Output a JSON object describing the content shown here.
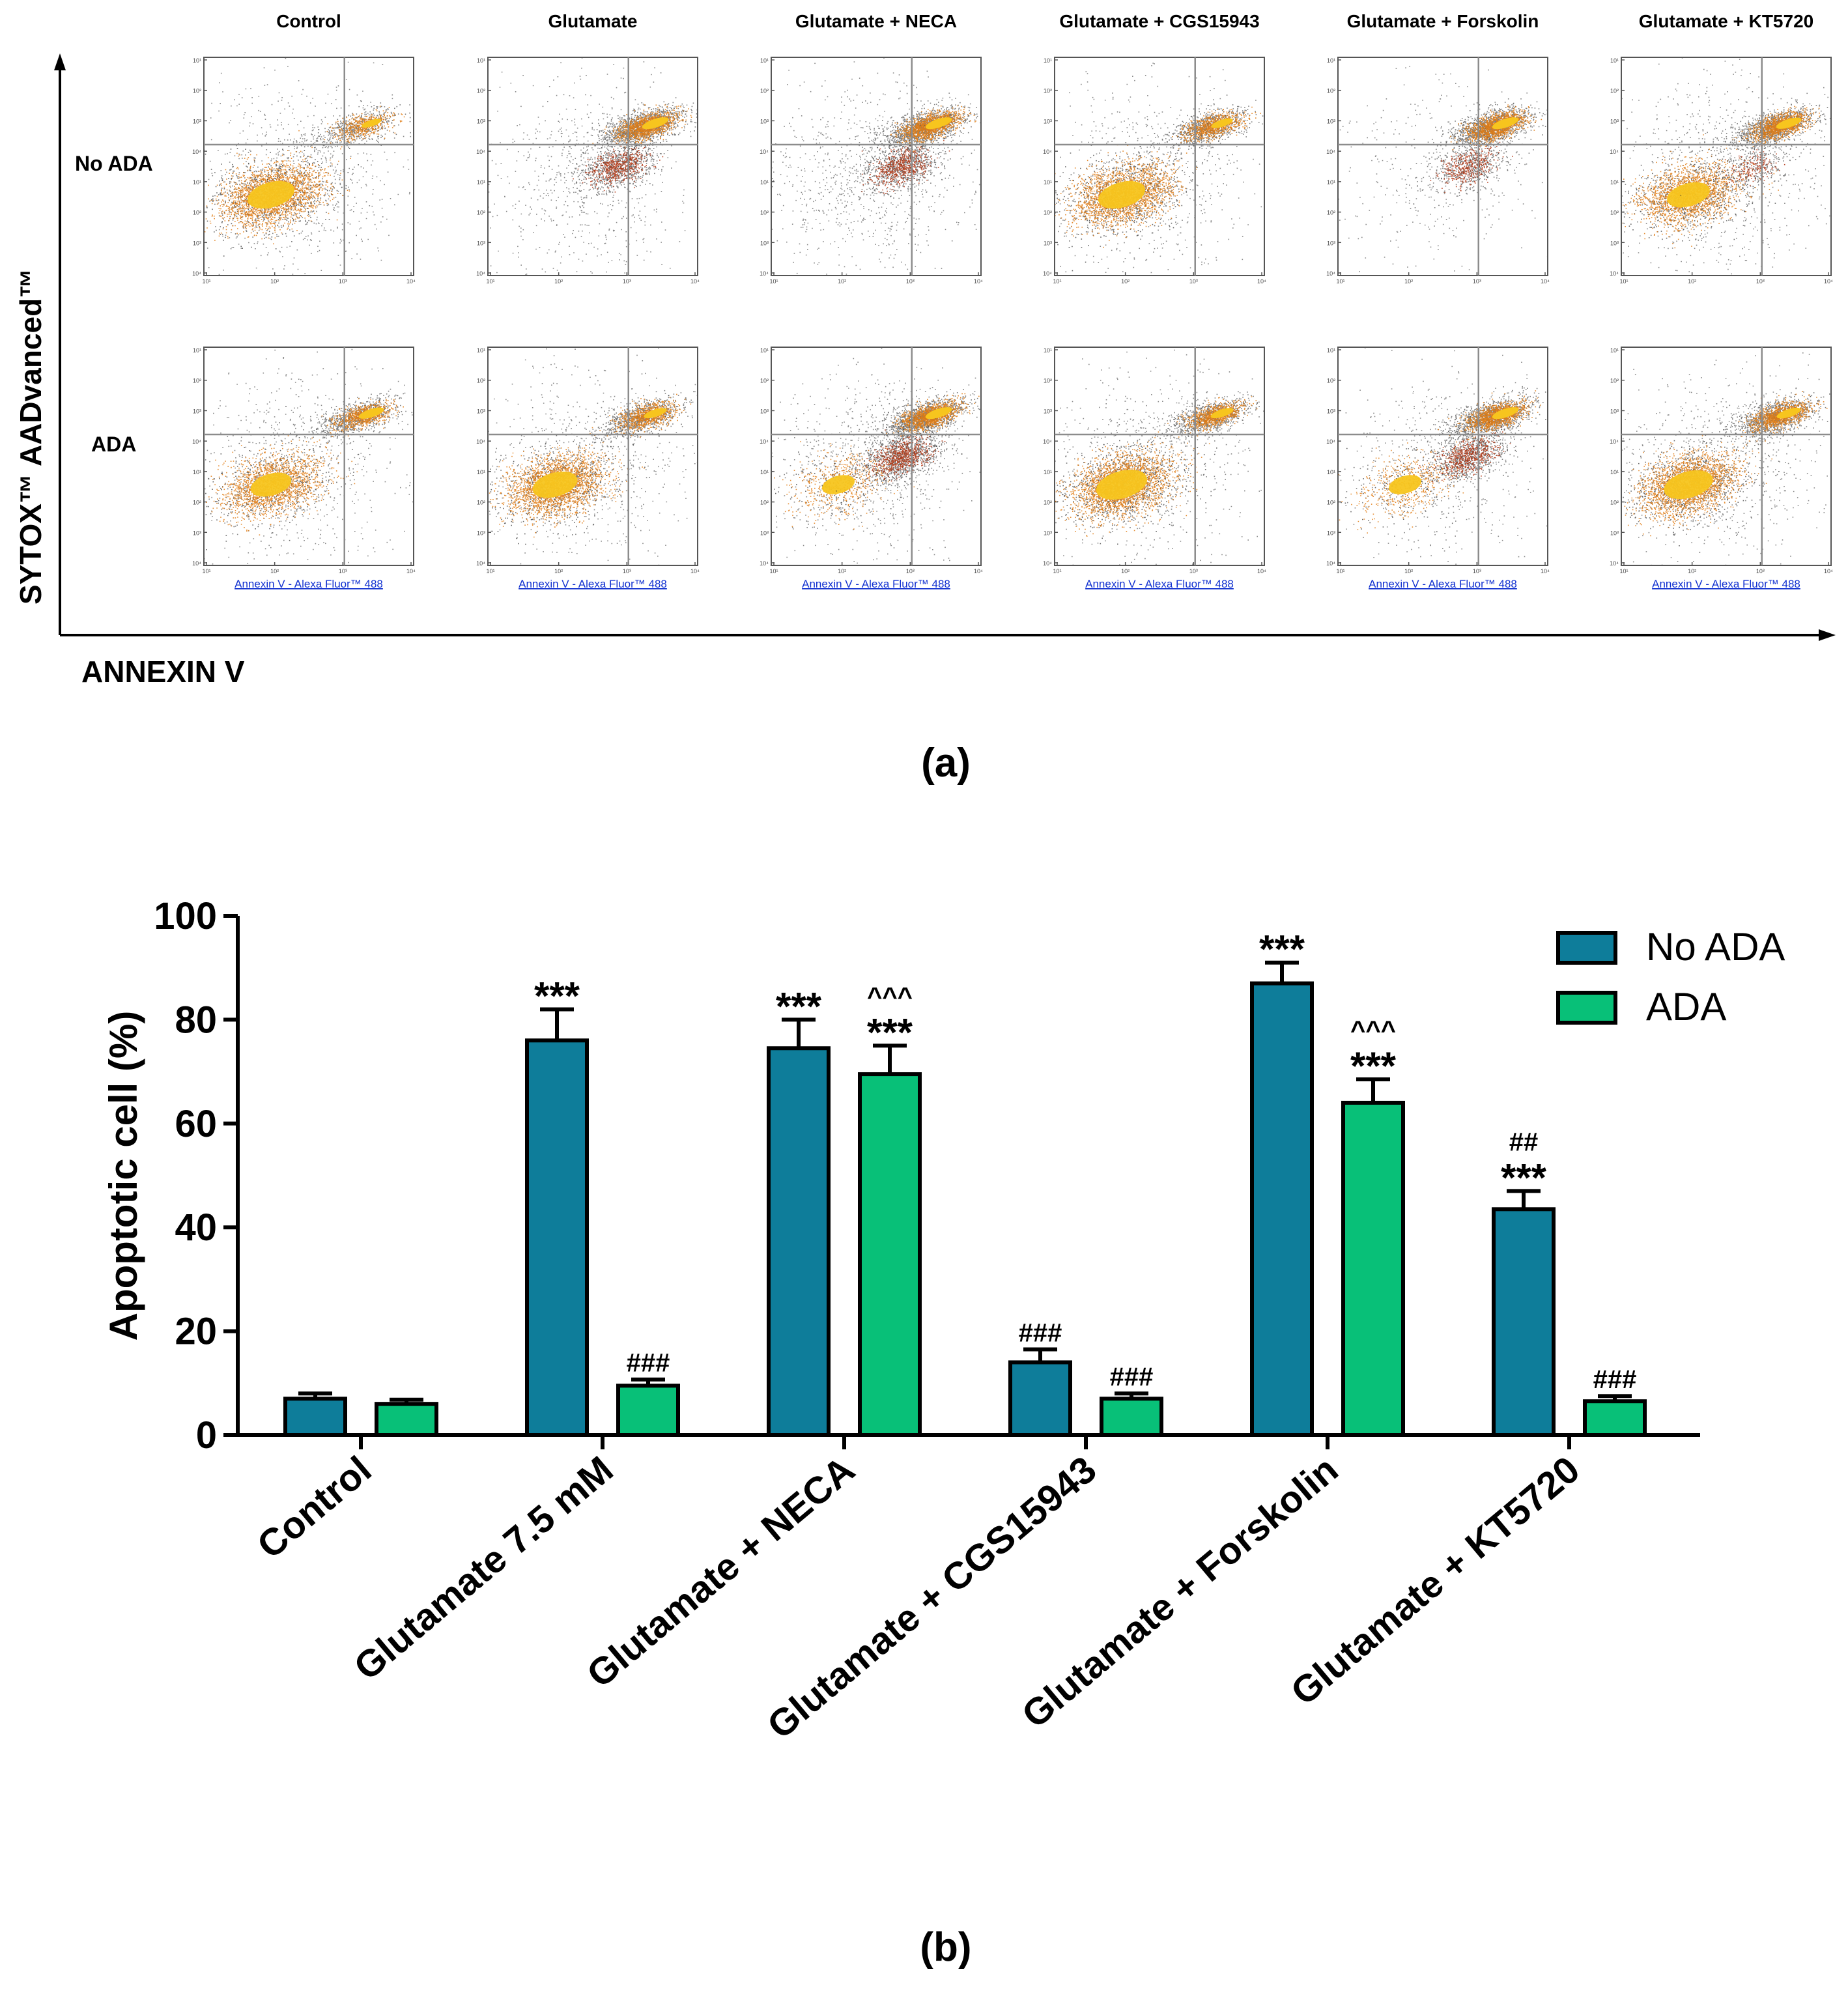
{
  "panel_a": {
    "label": "(a)",
    "columns": [
      "Control",
      "Glutamate",
      "Glutamate + NECA",
      "Glutamate + CGS15943",
      "Glutamate + Forskolin",
      "Glutamate + KT5720"
    ],
    "rows": [
      "No ADA",
      "ADA"
    ],
    "y_axis_label": "SYTOX™ AADvanced™",
    "x_axis_label": "ANNEXIN V",
    "subplot_xlabel": "Annexin V - Alexa Fluor™ 488",
    "tick_labels": [
      "10¹",
      "10²",
      "10³",
      "10⁴"
    ],
    "colors": {
      "dense": "#f7c51e",
      "mid": "#e07a10",
      "apoptotic": "#b0300c",
      "sparse": "#2a2a2a",
      "gate": "#8c8c8c",
      "link": "#1030d0"
    },
    "populations": [
      [
        {
          "live": [
            0.45,
            0.9
          ],
          "late": [
            0.22,
            0.35
          ],
          "early": [
            0,
            0
          ],
          "debris": [
            0.25,
            0.6
          ]
        },
        {
          "live": [
            0.3,
            0.7
          ],
          "late": [
            0.45,
            0.55
          ],
          "early": [
            0,
            0
          ],
          "debris": [
            0.1,
            0.5
          ]
        }
      ],
      [
        {
          "live": [
            0.05,
            0.1
          ],
          "late": [
            0.5,
            0.95
          ],
          "early": [
            0.3,
            0.5
          ],
          "debris": [
            0.2,
            0.5
          ]
        },
        {
          "live": [
            0.4,
            0.9
          ],
          "late": [
            0.35,
            0.6
          ],
          "early": [
            0,
            0
          ],
          "debris": [
            0.15,
            0.5
          ]
        }
      ],
      [
        {
          "live": [
            0.05,
            0.1
          ],
          "late": [
            0.5,
            0.95
          ],
          "early": [
            0.3,
            0.5
          ],
          "debris": [
            0.3,
            0.6
          ]
        },
        {
          "live": [
            0.1,
            0.2
          ],
          "late": [
            0.5,
            0.95
          ],
          "early": [
            0.45,
            0.6
          ],
          "debris": [
            0.3,
            0.6
          ]
        }
      ],
      [
        {
          "live": [
            0.45,
            0.85
          ],
          "late": [
            0.3,
            0.6
          ],
          "early": [
            0,
            0
          ],
          "debris": [
            0.2,
            0.5
          ]
        },
        {
          "live": [
            0.55,
            0.95
          ],
          "late": [
            0.35,
            0.6
          ],
          "early": [
            0,
            0
          ],
          "debris": [
            0.2,
            0.5
          ]
        }
      ],
      [
        {
          "live": [
            0.05,
            0.1
          ],
          "late": [
            0.5,
            0.95
          ],
          "early": [
            0.2,
            0.35
          ],
          "debris": [
            0.1,
            0.25
          ]
        },
        {
          "live": [
            0.1,
            0.2
          ],
          "late": [
            0.5,
            0.9
          ],
          "early": [
            0.35,
            0.5
          ],
          "debris": [
            0.2,
            0.4
          ]
        }
      ],
      [
        {
          "live": [
            0.35,
            0.7
          ],
          "late": [
            0.45,
            0.85
          ],
          "early": [
            0.1,
            0.15
          ],
          "debris": [
            0.2,
            0.6
          ]
        },
        {
          "live": [
            0.5,
            0.9
          ],
          "late": [
            0.4,
            0.8
          ],
          "early": [
            0,
            0
          ],
          "debris": [
            0.2,
            0.5
          ]
        }
      ]
    ]
  },
  "panel_b": {
    "label": "(b)"
  },
  "chart_data": {
    "type": "bar",
    "title": "",
    "xlabel": "",
    "ylabel": "Apoptotic cell (%)",
    "ylim": [
      0,
      100
    ],
    "yticks": [
      0,
      20,
      40,
      60,
      80,
      100
    ],
    "categories": [
      "Control",
      "Glutamate 7.5 mM",
      "Glutamate + NECA",
      "Glutamate + CGS15943",
      "Glutamate + Forskolin",
      "Glutamate + KT5720"
    ],
    "legend_position": "top-right",
    "series": [
      {
        "name": "No ADA",
        "color": "#0e7d9a",
        "values": [
          7,
          76,
          74.5,
          14,
          87,
          43.5
        ],
        "errors": [
          1,
          6,
          5.5,
          2.5,
          4,
          3.5
        ],
        "annotations": [
          [],
          [
            "***"
          ],
          [
            "***"
          ],
          [
            "###"
          ],
          [
            "***"
          ],
          [
            "***",
            "##"
          ]
        ]
      },
      {
        "name": "ADA",
        "color": "#08c078",
        "values": [
          6,
          9.5,
          69.5,
          7,
          64,
          6.5
        ],
        "errors": [
          0.8,
          1.2,
          5.5,
          1,
          4.5,
          1
        ],
        "annotations": [
          [],
          [
            "###"
          ],
          [
            "***",
            "^^^"
          ],
          [
            "###"
          ],
          [
            "***",
            "^^^"
          ],
          [
            "###"
          ]
        ]
      }
    ]
  }
}
